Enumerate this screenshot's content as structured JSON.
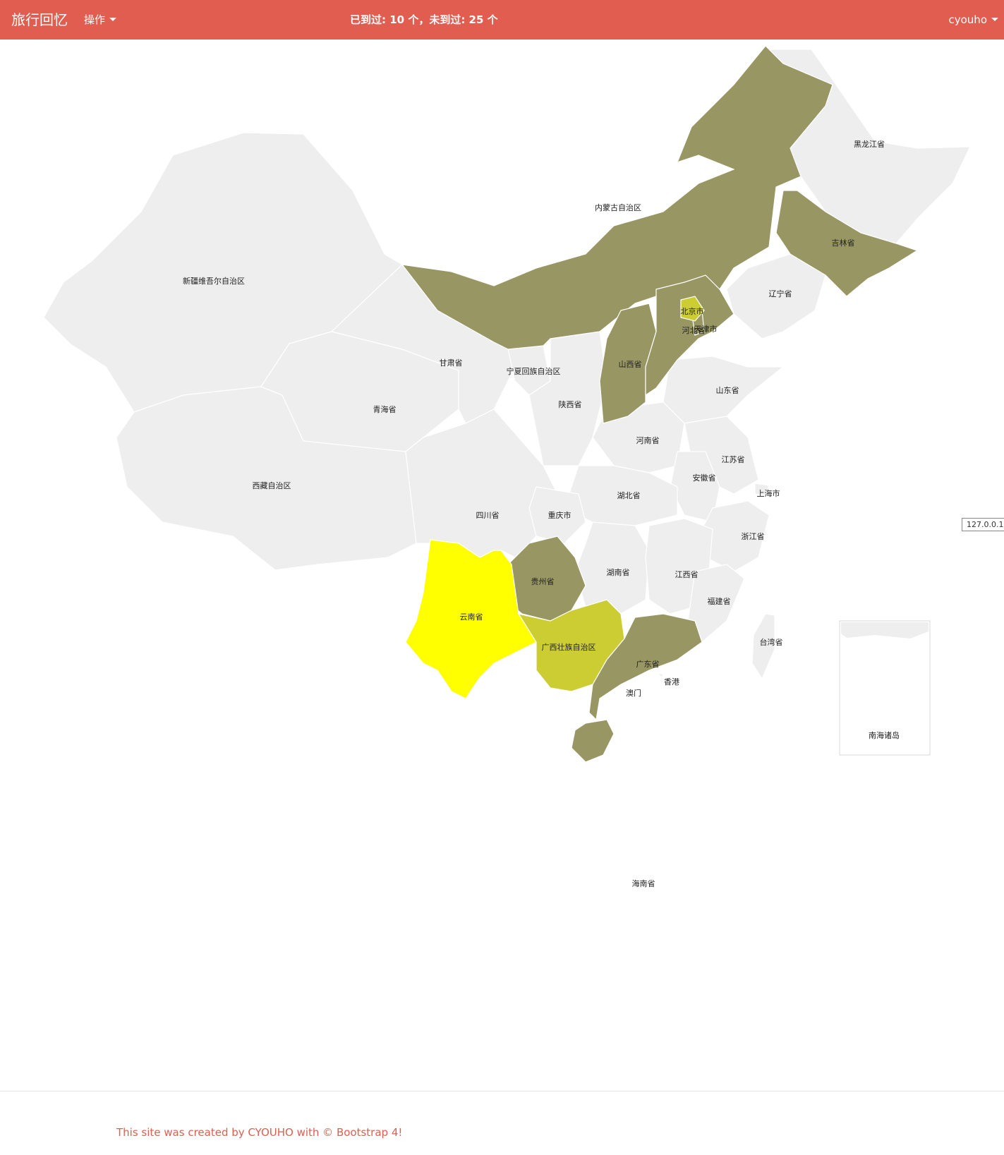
{
  "navbar": {
    "brand": "旅行回忆",
    "menu_label": "操作",
    "stats": "已到过: 10 个，未到过: 25 个",
    "user": "cyouho"
  },
  "colors": {
    "navbar": "#e05d50",
    "unvisited": "#eeeeee",
    "visited": "#989764",
    "highlight_bright": "#ffff00",
    "highlight_lime": "#cccc33"
  },
  "map": {
    "provinces": {
      "xinjiang": "新疆维吾尔自治区",
      "xizang": "西藏自治区",
      "qinghai": "青海省",
      "gansu": "甘肃省",
      "neimenggu": "内蒙古自治区",
      "heilongjiang": "黑龙江省",
      "jilin": "吉林省",
      "liaoning": "辽宁省",
      "beijing": "北京市",
      "tianjin": "天津市",
      "hebei": "河北省",
      "shanxi": "山西省",
      "shandong": "山东省",
      "ningxia": "宁夏回族自治区",
      "shaanxi": "陕西省",
      "henan": "河南省",
      "jiangsu": "江苏省",
      "anhui": "安徽省",
      "shanghai": "上海市",
      "hubei": "湖北省",
      "sichuan": "四川省",
      "chongqing": "重庆市",
      "zhejiang": "浙江省",
      "hunan": "湖南省",
      "jiangxi": "江西省",
      "guizhou": "贵州省",
      "fujian": "福建省",
      "yunnan": "云南省",
      "guangxi": "广西壮族自治区",
      "guangdong": "广东省",
      "taiwan": "台湾省",
      "hongkong": "香港",
      "macau": "澳门",
      "hainan": "海南省",
      "nanhai": "南海诸岛"
    },
    "tooltip": "127.0.0.1"
  },
  "footer": {
    "text": "This site was created by CYOUHO with © Bootstrap 4!"
  }
}
